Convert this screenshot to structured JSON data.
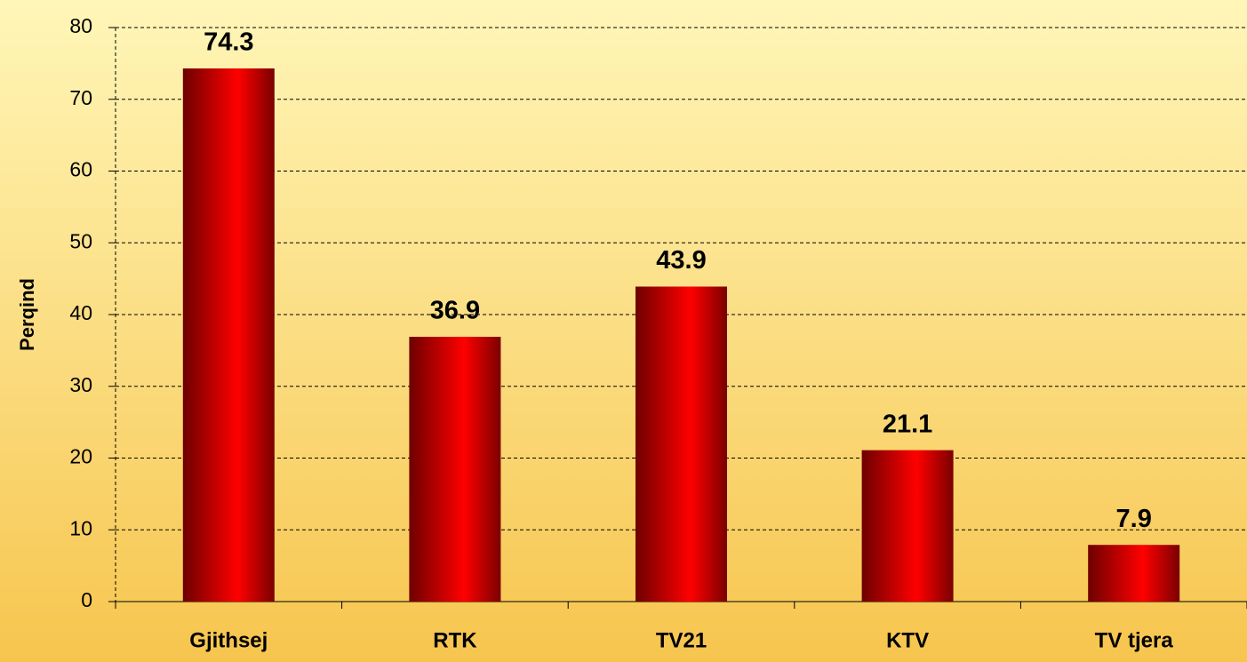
{
  "chart_data": {
    "type": "bar",
    "y_label": "Perqind",
    "categories": [
      "Gjithsej",
      "RTK",
      "TV21",
      "KTV",
      "TV tjera"
    ],
    "values": [
      74.3,
      36.9,
      43.9,
      21.1,
      7.9
    ],
    "color": "#ff0000",
    "ylim": [
      0,
      80
    ],
    "yticks": [
      0,
      10,
      20,
      30,
      40,
      50,
      60,
      70,
      80
    ],
    "grid": true
  }
}
